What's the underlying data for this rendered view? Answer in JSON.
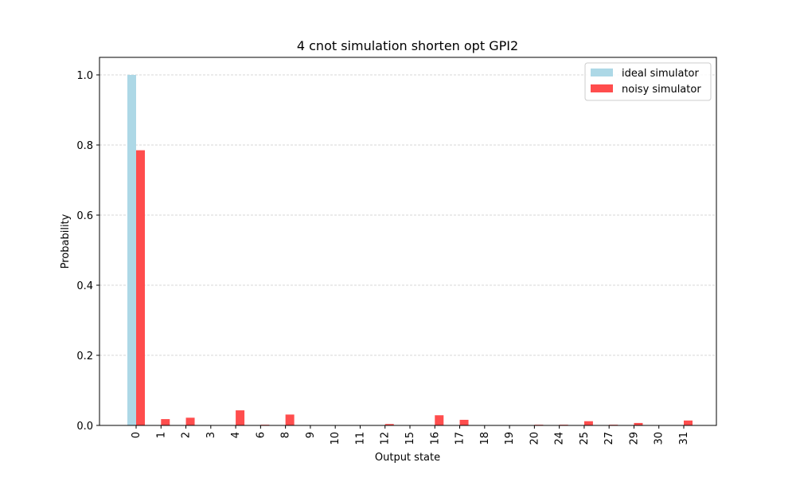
{
  "chart_data": {
    "type": "bar",
    "title": "4 cnot simulation shorten opt GPI2",
    "xlabel": "Output state",
    "ylabel": "Probability",
    "ylim": [
      0,
      1.05
    ],
    "yticks": [
      0.0,
      0.2,
      0.4,
      0.6,
      0.8,
      1.0
    ],
    "ytick_labels": [
      "0.0",
      "0.2",
      "0.4",
      "0.6",
      "0.8",
      "1.0"
    ],
    "grid": "y-dashed",
    "legend_position": "top-right",
    "categories": [
      "0",
      "1",
      "2",
      "3",
      "4",
      "6",
      "8",
      "9",
      "10",
      "11",
      "12",
      "15",
      "16",
      "17",
      "18",
      "19",
      "20",
      "24",
      "25",
      "27",
      "29",
      "30",
      "31"
    ],
    "series": [
      {
        "name": "ideal simulator",
        "color": "#add8e6",
        "values": [
          1.0,
          0,
          0,
          0,
          0,
          0,
          0,
          0,
          0,
          0,
          0,
          0,
          0,
          0,
          0,
          0,
          0,
          0,
          0,
          0,
          0,
          0,
          0
        ]
      },
      {
        "name": "noisy simulator",
        "color": "#ff4d4d",
        "values": [
          0.785,
          0.018,
          0.022,
          0,
          0.043,
          0.002,
          0.031,
          0,
          0,
          0,
          0.004,
          0,
          0.029,
          0.016,
          0,
          0,
          0.002,
          0.002,
          0.012,
          0.002,
          0.007,
          0,
          0.014
        ]
      }
    ]
  }
}
